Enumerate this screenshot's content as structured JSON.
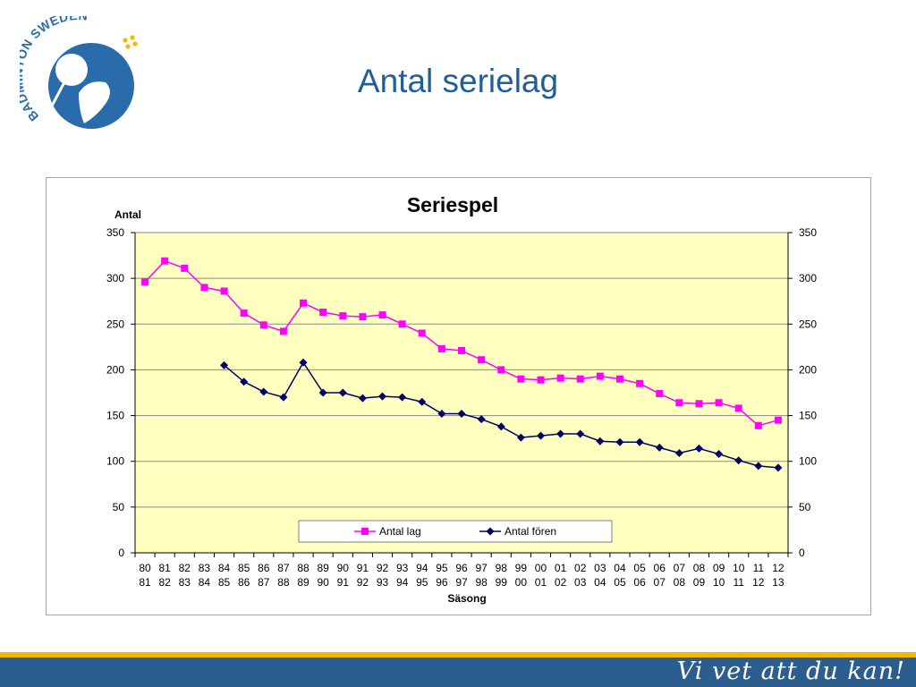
{
  "logo": {
    "text": "BADMINTON SWEDEN"
  },
  "slide": {
    "title": "Antal serielag"
  },
  "footer": {
    "slogan": "Vi vet att du kan!"
  },
  "colors": {
    "title": "#1f5e99",
    "plot_background": "#ffffc0",
    "antal_lag": "#ff00ff",
    "antal_foren": "#000066",
    "footer": "#2c5d8f",
    "footer_stripe": "#f5b800"
  },
  "chart_data": {
    "type": "line",
    "title": "Seriespel",
    "ylabel": "Antal",
    "xlabel": "Säsong",
    "ylim": [
      0,
      350
    ],
    "yticks": [
      0,
      50,
      100,
      150,
      200,
      250,
      300,
      350
    ],
    "secondary_yaxis": true,
    "grid": "horizontal",
    "legend_position": "bottom-center",
    "categories": [
      "80 81",
      "81 82",
      "82 83",
      "83 84",
      "84 85",
      "85 86",
      "86 87",
      "87 88",
      "88 89",
      "89 90",
      "90 91",
      "91 92",
      "92 93",
      "93 94",
      "94 95",
      "95 96",
      "96 97",
      "97 98",
      "98 99",
      "99 00",
      "00 01",
      "01 02",
      "02 03",
      "03 04",
      "04 05",
      "05 06",
      "06 07",
      "07 08",
      "08 09",
      "09 10",
      "10 11",
      "11 12",
      "12 13"
    ],
    "series": [
      {
        "name": "Antal lag",
        "marker": "square",
        "values": [
          296,
          319,
          311,
          290,
          286,
          262,
          249,
          242,
          273,
          263,
          259,
          258,
          260,
          250,
          240,
          223,
          221,
          211,
          200,
          190,
          189,
          191,
          190,
          193,
          190,
          185,
          174,
          164,
          163,
          164,
          158,
          139,
          145
        ]
      },
      {
        "name": "Antal fören",
        "marker": "diamond",
        "values": [
          null,
          null,
          null,
          null,
          205,
          187,
          176,
          170,
          208,
          175,
          175,
          169,
          171,
          170,
          165,
          152,
          152,
          146,
          138,
          126,
          128,
          130,
          130,
          122,
          121,
          121,
          115,
          109,
          114,
          108,
          101,
          95,
          93
        ]
      }
    ]
  }
}
